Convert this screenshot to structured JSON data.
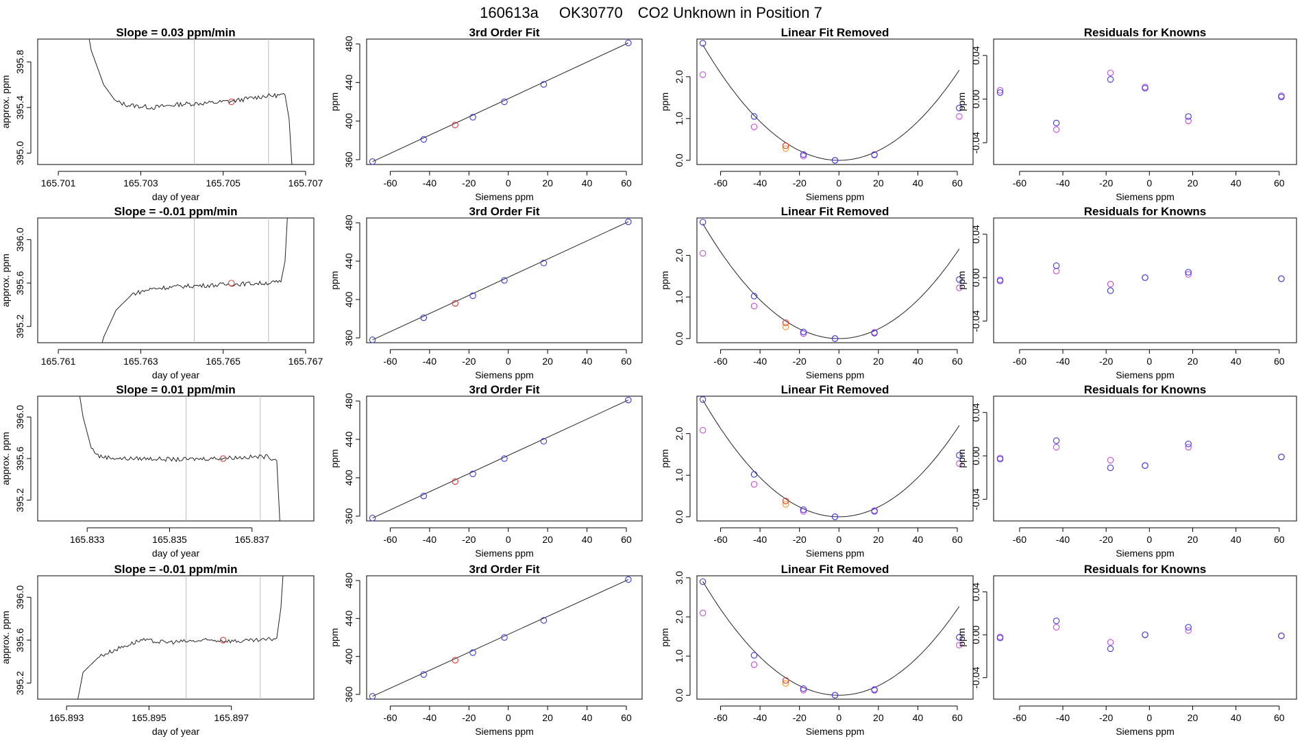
{
  "figure_title": {
    "id": "160613a",
    "tank": "OK30770",
    "desc": "CO2 Unknown in Position  7"
  },
  "colors": {
    "line": "#222222",
    "unknown": "#e03a3a",
    "known_fit": "#3a3ae0",
    "known_raw": "#c94ddc",
    "unknown_raw": "#f09a2a",
    "vline": "#bbbbbb"
  },
  "labels": {
    "ppm": "ppm",
    "siemens": "Siemens ppm",
    "doy": "day of year",
    "approx": "approx. ppm"
  },
  "panel_titles": {
    "fit": "3rd Order Fit",
    "lin": "Linear Fit Removed",
    "res": "Residuals for Knowns"
  },
  "chart_data": {
    "type": "scatter",
    "known_x": [
      -69,
      -43,
      -18,
      -2,
      18,
      61
    ],
    "unknown_x": -27,
    "fit": {
      "x_range": [
        -72,
        68
      ],
      "y_range": [
        355,
        485
      ],
      "x_ticks": [
        -60,
        -40,
        -20,
        0,
        20,
        40,
        60
      ],
      "y_ticks": [
        360,
        400,
        440,
        480
      ],
      "known_y": [
        358,
        381,
        404,
        420,
        438,
        481
      ],
      "unknown_y": 396
    },
    "rows": [
      {
        "slope_text": "Slope =  0.03  ppm/min",
        "time": {
          "x_range": [
            165.7005,
            165.7072
          ],
          "y_range": [
            394.9,
            396.0
          ],
          "x_ticks": [
            "165.701",
            "165.703",
            "165.705",
            "165.707"
          ],
          "y_ticks": [
            "395.0",
            "395.4",
            "395.8"
          ],
          "vlines": [
            165.7043,
            165.7061
          ],
          "marker": [
            165.7052,
            395.45
          ],
          "trace": [
            [
              165.7015,
              396.5
            ],
            [
              165.7018,
              395.9
            ],
            [
              165.7021,
              395.6
            ],
            [
              165.7024,
              395.45
            ],
            [
              165.7027,
              395.42
            ],
            [
              165.7033,
              395.4
            ],
            [
              165.704,
              395.43
            ],
            [
              165.7047,
              395.44
            ],
            [
              165.7053,
              395.46
            ],
            [
              165.706,
              395.5
            ],
            [
              165.7065,
              395.51
            ],
            [
              165.7066,
              395.3
            ],
            [
              165.7067,
              394.7
            ]
          ]
        },
        "lin": {
          "y_range": [
            -0.1,
            2.9
          ],
          "y_ticks": [
            "0.0",
            "1.0",
            "2.0"
          ],
          "curve_a": 0.00058,
          "fit_y": [
            2.8,
            1.05,
            0.14,
            0.0,
            0.13,
            1.25
          ],
          "raw_y": [
            2.05,
            0.8,
            0.1,
            0.0,
            0.14,
            1.05
          ],
          "unknown_fit": 0.35,
          "unknown_raw": 0.28
        },
        "res": {
          "y_range": [
            -0.06,
            0.055
          ],
          "y_ticks": [
            "-0.04",
            "0.00",
            "0.04"
          ],
          "fit_y": [
            0.006,
            -0.022,
            0.018,
            0.01,
            -0.016,
            0.002
          ],
          "raw_y": [
            0.008,
            -0.028,
            0.024,
            0.011,
            -0.02,
            0.003
          ]
        }
      },
      {
        "slope_text": "Slope =  -0.01  ppm/min",
        "time": {
          "x_range": [
            165.7605,
            165.7672
          ],
          "y_range": [
            395.05,
            396.2
          ],
          "x_ticks": [
            "165.761",
            "165.763",
            "165.765",
            "165.767"
          ],
          "y_ticks": [
            "395.2",
            "395.6",
            "396.0"
          ],
          "vlines": [
            165.7643,
            165.7661
          ],
          "marker": [
            165.7652,
            395.6
          ],
          "trace": [
            [
              165.7619,
              394.8
            ],
            [
              165.7621,
              395.1
            ],
            [
              165.7624,
              395.35
            ],
            [
              165.7628,
              395.5
            ],
            [
              165.7633,
              395.55
            ],
            [
              165.764,
              395.57
            ],
            [
              165.7647,
              395.58
            ],
            [
              165.7653,
              395.59
            ],
            [
              165.766,
              395.6
            ],
            [
              165.7664,
              395.61
            ],
            [
              165.7665,
              395.8
            ],
            [
              165.7666,
              396.5
            ]
          ]
        },
        "lin": {
          "y_range": [
            -0.1,
            2.9
          ],
          "y_ticks": [
            "0.0",
            "1.0",
            "2.0"
          ],
          "curve_a": 0.00058,
          "fit_y": [
            2.8,
            1.02,
            0.16,
            0.0,
            0.13,
            1.42
          ],
          "raw_y": [
            2.05,
            0.78,
            0.12,
            0.0,
            0.15,
            1.22
          ],
          "unknown_fit": 0.38,
          "unknown_raw": 0.28
        },
        "res": {
          "y_range": [
            -0.06,
            0.055
          ],
          "y_ticks": [
            "-0.04",
            "0.00",
            "0.04"
          ],
          "fit_y": [
            -0.003,
            0.011,
            -0.012,
            0.0,
            0.005,
            -0.001
          ],
          "raw_y": [
            -0.002,
            0.006,
            -0.006,
            0.0,
            0.003,
            -0.001
          ]
        }
      },
      {
        "slope_text": "Slope =  0.01  ppm/min",
        "time": {
          "x_range": [
            165.8318,
            165.8385
          ],
          "y_range": [
            395.0,
            396.2
          ],
          "x_ticks": [
            "165.833",
            "165.835",
            "165.837"
          ],
          "y_ticks": [
            "395.2",
            "395.6",
            "396.0"
          ],
          "vlines": [
            165.8354,
            165.8372
          ],
          "marker": [
            165.8363,
            395.6
          ],
          "trace": [
            [
              165.8327,
              396.5
            ],
            [
              165.8329,
              396.0
            ],
            [
              165.8331,
              395.7
            ],
            [
              165.8333,
              395.62
            ],
            [
              165.8338,
              395.6
            ],
            [
              165.8345,
              395.6
            ],
            [
              165.8352,
              395.59
            ],
            [
              165.8359,
              395.6
            ],
            [
              165.8366,
              395.61
            ],
            [
              165.8374,
              395.62
            ],
            [
              165.8376,
              395.58
            ],
            [
              165.8377,
              394.8
            ]
          ]
        },
        "lin": {
          "y_range": [
            -0.1,
            2.9
          ],
          "y_ticks": [
            "0.0",
            "1.0",
            "2.0"
          ],
          "curve_a": 0.00059,
          "fit_y": [
            2.82,
            1.02,
            0.17,
            0.0,
            0.13,
            1.48
          ],
          "raw_y": [
            2.08,
            0.78,
            0.13,
            0.0,
            0.15,
            1.28
          ],
          "unknown_fit": 0.38,
          "unknown_raw": 0.3
        },
        "res": {
          "y_range": [
            -0.06,
            0.055
          ],
          "y_ticks": [
            "-0.04",
            "0.00",
            "0.04"
          ],
          "fit_y": [
            -0.003,
            0.014,
            -0.011,
            -0.009,
            0.011,
            -0.001
          ],
          "raw_y": [
            -0.002,
            0.008,
            -0.004,
            -0.009,
            0.008,
            -0.001
          ]
        }
      },
      {
        "slope_text": "Slope =  -0.01  ppm/min",
        "time": {
          "x_range": [
            165.8923,
            165.899
          ],
          "y_range": [
            395.05,
            396.2
          ],
          "x_ticks": [
            "165.893",
            "165.895",
            "165.897"
          ],
          "y_ticks": [
            "395.2",
            "395.6",
            "396.0"
          ],
          "vlines": [
            165.8959,
            165.8977
          ],
          "marker": [
            165.8968,
            395.6
          ],
          "trace": [
            [
              165.8932,
              394.9
            ],
            [
              165.8934,
              395.3
            ],
            [
              165.8938,
              395.45
            ],
            [
              165.8943,
              395.53
            ],
            [
              165.8948,
              395.6
            ],
            [
              165.8954,
              395.58
            ],
            [
              165.896,
              395.59
            ],
            [
              165.8966,
              395.6
            ],
            [
              165.8972,
              395.59
            ],
            [
              165.8978,
              395.6
            ],
            [
              165.8981,
              395.62
            ],
            [
              165.8982,
              395.9
            ],
            [
              165.8983,
              396.5
            ]
          ]
        },
        "lin": {
          "y_range": [
            -0.1,
            3.05
          ],
          "y_ticks": [
            "0.0",
            "1.0",
            "2.0",
            "3.0"
          ],
          "curve_a": 0.00061,
          "fit_y": [
            2.9,
            1.02,
            0.17,
            0.0,
            0.13,
            1.48
          ],
          "raw_y": [
            2.1,
            0.78,
            0.13,
            0.0,
            0.15,
            1.28
          ],
          "unknown_fit": 0.38,
          "unknown_raw": 0.3
        },
        "res": {
          "y_range": [
            -0.06,
            0.055
          ],
          "y_ticks": [
            "-0.04",
            "0.00",
            "0.04"
          ],
          "fit_y": [
            -0.003,
            0.013,
            -0.013,
            0.0,
            0.007,
            -0.001
          ],
          "raw_y": [
            -0.002,
            0.007,
            -0.007,
            0.0,
            0.004,
            -0.001
          ]
        }
      }
    ]
  }
}
